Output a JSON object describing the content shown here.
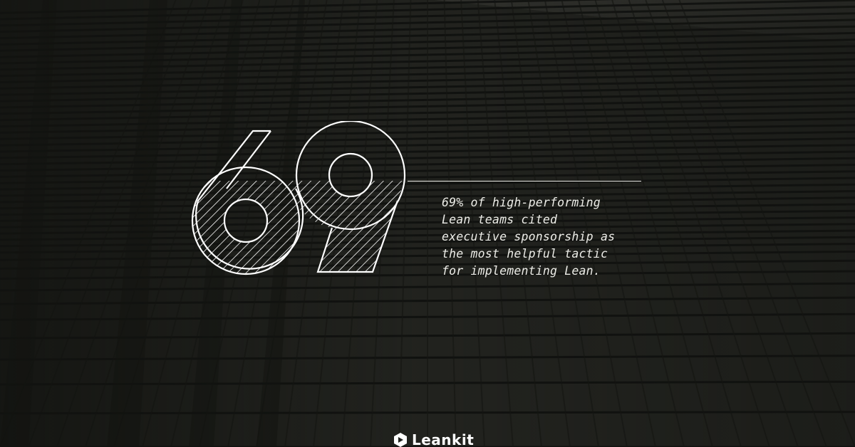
{
  "graphic": {
    "number": "69",
    "statement": "69% of high-performing\nLean teams cited\nexecutive sponsorship as\nthe most helpful tactic\nfor implementing Lean."
  },
  "brand": {
    "name": "Leankit",
    "logo_icon": "leankit-logo-icon"
  },
  "colors": {
    "background": "#1f201d",
    "text": "#ededE8",
    "outline": "#ffffff"
  }
}
